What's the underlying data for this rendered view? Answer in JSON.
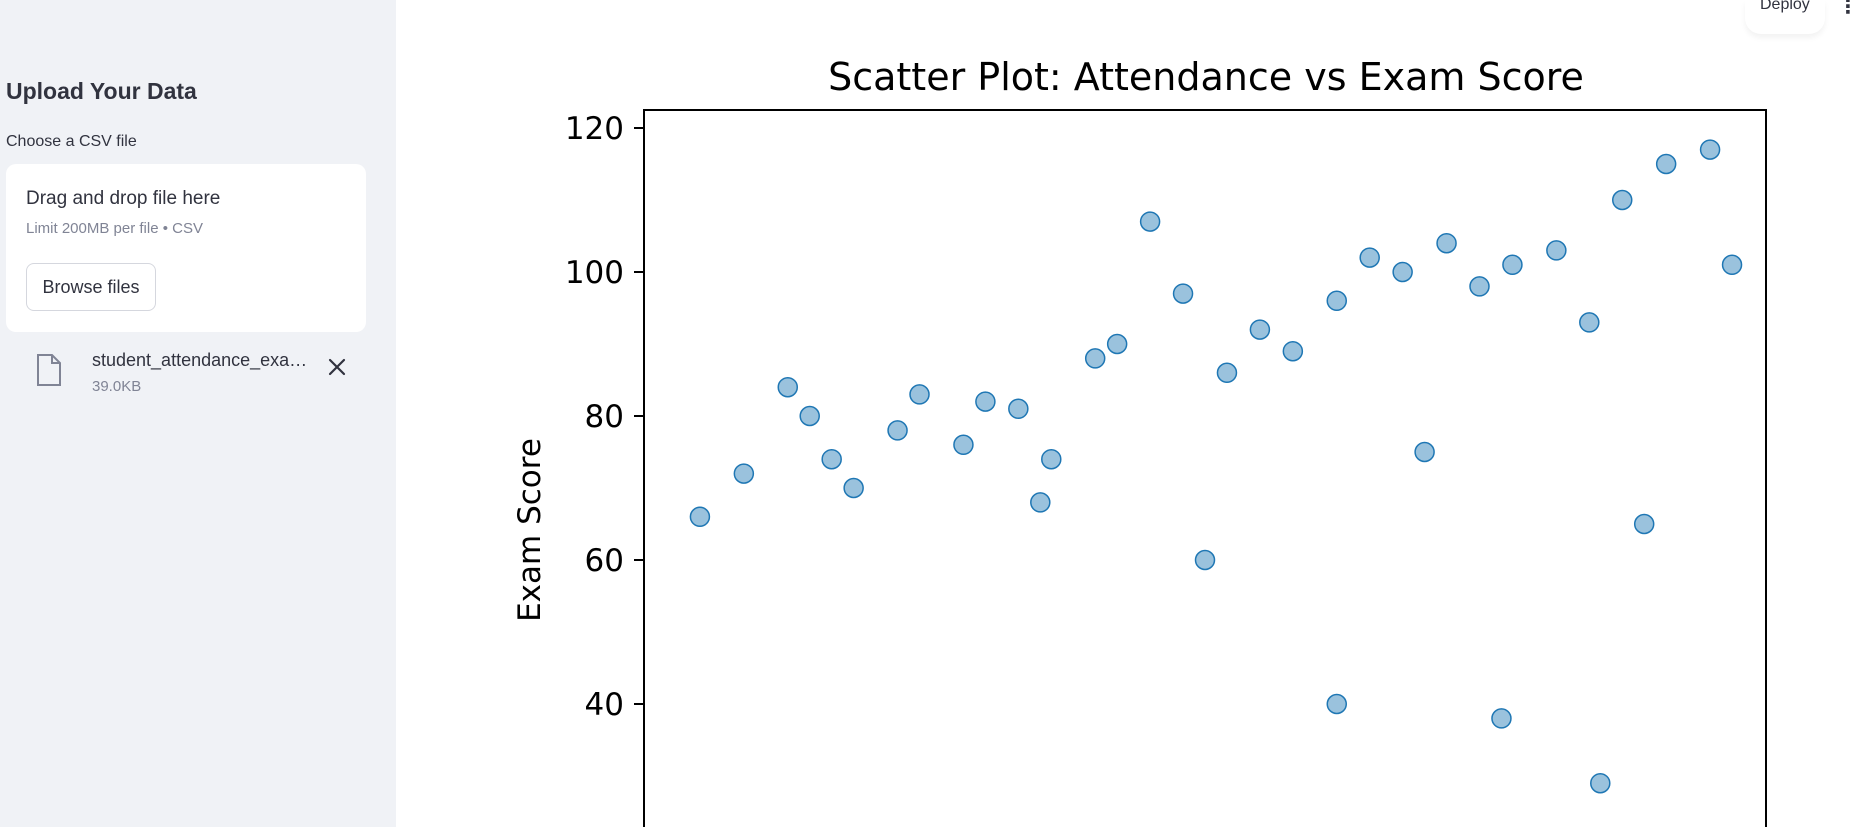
{
  "sidebar": {
    "title": "Upload Your Data",
    "uploader_label": "Choose a CSV file",
    "dropzone_title": "Drag and drop file here",
    "dropzone_limit": "Limit 200MB per file • CSV",
    "browse_label": "Browse files",
    "file": {
      "name": "student_attendance_exam_scores.csv",
      "size": "39.0KB"
    }
  },
  "header": {
    "deploy_label": "Deploy",
    "menu_icon": "more-vert-icon"
  },
  "colors": {
    "marker": "#1f77b4",
    "sidebar_bg": "#f0f2f6"
  },
  "chart_data": {
    "type": "scatter",
    "title": "Scatter Plot: Attendance vs Exam Score",
    "xlabel": "",
    "ylabel": "Exam Score",
    "yticks": [
      40,
      60,
      80,
      100,
      120
    ],
    "ylim": [
      26,
      122
    ],
    "xlim": [
      0,
      1
    ],
    "grid": false,
    "marker_alpha": 0.45,
    "x": [
      0.04,
      0.08,
      0.12,
      0.14,
      0.16,
      0.18,
      0.22,
      0.24,
      0.28,
      0.3,
      0.33,
      0.36,
      0.4,
      0.42,
      0.45,
      0.48,
      0.52,
      0.55,
      0.58,
      0.62,
      0.65,
      0.68,
      0.72,
      0.75,
      0.78,
      0.82,
      0.85,
      0.88,
      0.92,
      0.96,
      0.98,
      0.35,
      0.5,
      0.7,
      0.9,
      0.62,
      0.77,
      0.86
    ],
    "y": [
      66,
      72,
      84,
      80,
      74,
      70,
      78,
      83,
      76,
      82,
      81,
      74,
      88,
      90,
      107,
      97,
      86,
      92,
      89,
      96,
      102,
      100,
      104,
      98,
      101,
      103,
      93,
      110,
      115,
      117,
      101,
      68,
      60,
      75,
      65,
      40,
      38,
      29
    ]
  }
}
